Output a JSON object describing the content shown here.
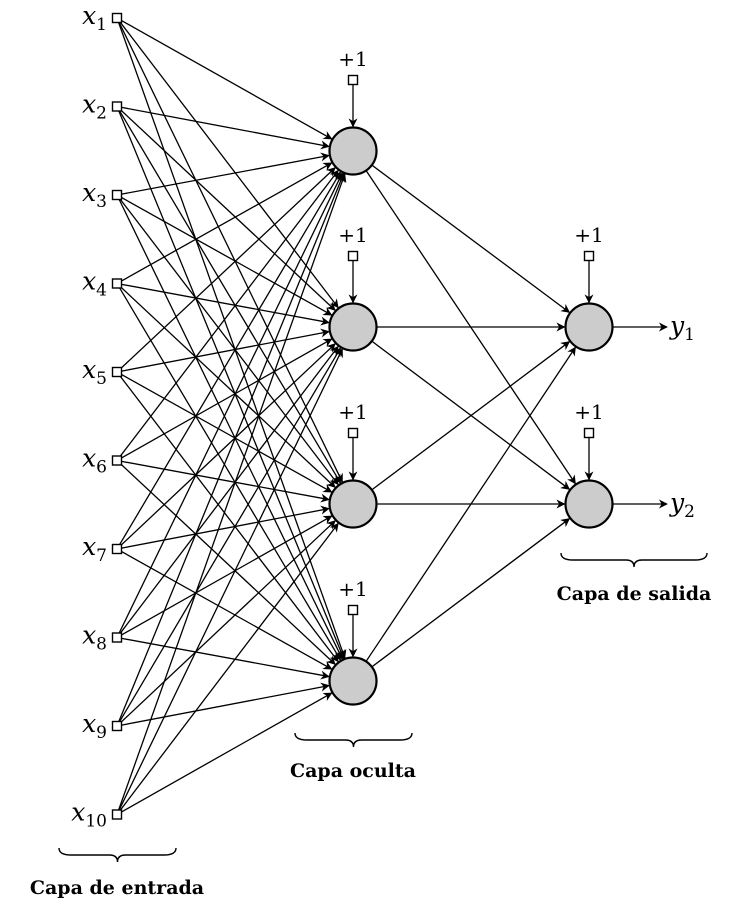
{
  "input_layer": {
    "caption": "Capa de entrada",
    "nodes": [
      {
        "var": "x",
        "sub": "1"
      },
      {
        "var": "x",
        "sub": "2"
      },
      {
        "var": "x",
        "sub": "3"
      },
      {
        "var": "x",
        "sub": "4"
      },
      {
        "var": "x",
        "sub": "5"
      },
      {
        "var": "x",
        "sub": "6"
      },
      {
        "var": "x",
        "sub": "7"
      },
      {
        "var": "x",
        "sub": "8"
      },
      {
        "var": "x",
        "sub": "9"
      },
      {
        "var": "x",
        "sub": "10"
      }
    ]
  },
  "hidden_layer": {
    "caption": "Capa oculta",
    "node_count": 4,
    "bias_label": "+1"
  },
  "output_layer": {
    "caption": "Capa de salida",
    "bias_label": "+1",
    "nodes": [
      {
        "var": "y",
        "sub": "1"
      },
      {
        "var": "y",
        "sub": "2"
      }
    ]
  },
  "colors": {
    "neuron_fill": "#cccccc",
    "stroke": "#000000"
  }
}
